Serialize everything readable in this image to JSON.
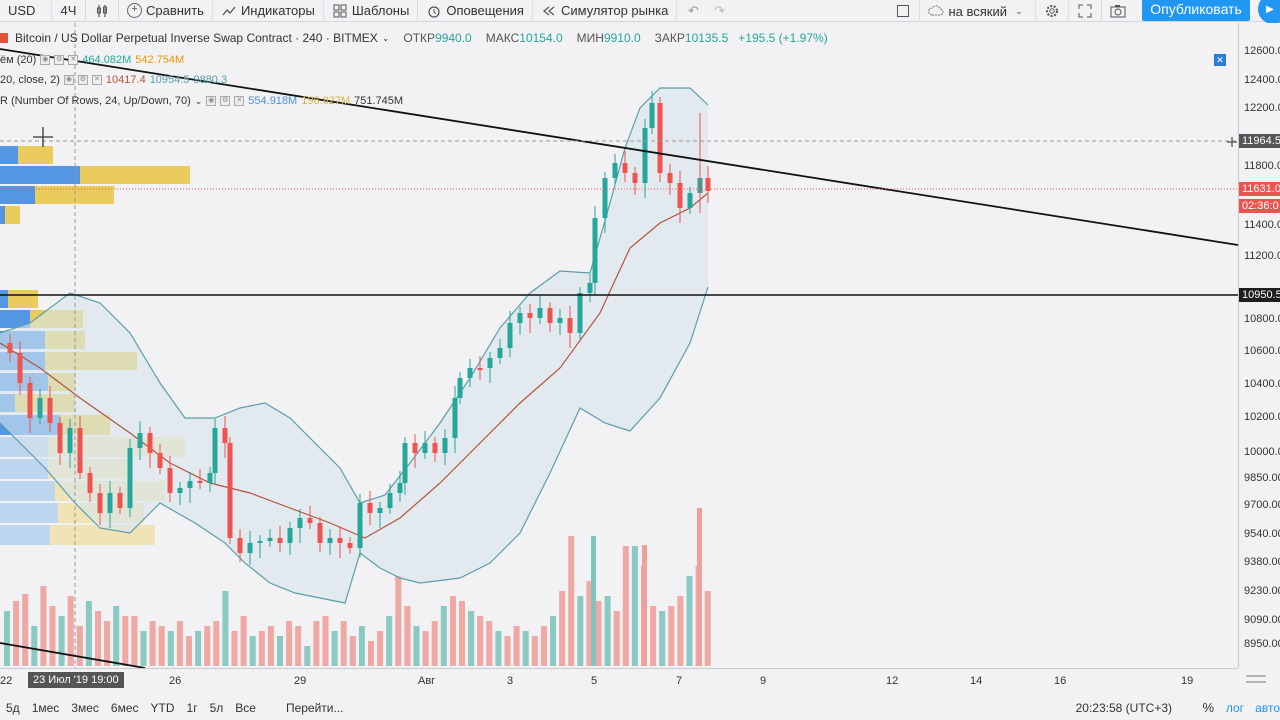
{
  "toolbar": {
    "symbol_suffix": "USD",
    "interval": "4Ч",
    "compare_label": "Сравнить",
    "indicators_label": "Индикаторы",
    "templates_label": "Шаблоны",
    "alerts_label": "Оповещения",
    "replay_label": "Симулятор рынка",
    "layout_name": "на всякий",
    "publish_label": "Опубликовать"
  },
  "legend": {
    "title": "Bitcoin / US Dollar Perpetual Inverse Swap Contract · 240 · BITMEX",
    "open_label": "ОТКР",
    "open_value": "9940.0",
    "high_label": "МАКС",
    "high_value": "10154.0",
    "low_label": "МИН",
    "low_value": "9910.0",
    "close_label": "ЗАКР",
    "close_value": "10135.5",
    "change": "+195.5 (+1.97%)",
    "volume": {
      "name": "ём (20)",
      "value1": "464.082M",
      "value2": "542.754M"
    },
    "bb": {
      "name": "20, close, 2)",
      "value1": "10417.4",
      "value2": "10954.5",
      "value3": "9880.3"
    },
    "vpvr": {
      "name": "R (Number Of Rows, 24, Up/Down, 70)",
      "value1": "554.918M",
      "value2": "196.827M",
      "value3": "751.745M"
    }
  },
  "price_scale": {
    "labels": [
      "12600.00",
      "12400.00",
      "12200.00",
      "11800.00",
      "11400.00",
      "11200.00",
      "10800.00",
      "10600.00",
      "10400.00",
      "10200.00",
      "10000.00",
      "9850.00",
      "9700.00",
      "9540.00",
      "9380.00",
      "9230.00",
      "9090.00",
      "8950.00"
    ],
    "tag_current": "11631.0",
    "tag_countdown": "02:36:0",
    "tag_crosshair": "11964.5",
    "tag_hline": "10950.5"
  },
  "time_scale": {
    "labels": [
      "22",
      "26",
      "29",
      "Авг",
      "3",
      "5",
      "7",
      "9",
      "12",
      "14",
      "16",
      "19"
    ],
    "crosshair_label": "23 Июл '19   19:00"
  },
  "bottom_bar": {
    "ranges": [
      "5д",
      "1мес",
      "3мес",
      "6мес",
      "YTD",
      "1г",
      "5л",
      "Все"
    ],
    "goto_label": "Перейти...",
    "clock": "20:23:58 (UTC+3)",
    "percent": "%",
    "log": "лог",
    "auto": "авто"
  },
  "colors": {
    "up": "#26a69a",
    "down": "#ef5350",
    "bb_line": "#5a9fa8",
    "basis": "#b5533c",
    "vp_up": "#4a90e2",
    "vp_down": "#e8c84a"
  },
  "chart_data": {
    "type": "candlestick",
    "interval": "240",
    "x": [
      "22",
      "26",
      "29",
      "Авг",
      "3",
      "5",
      "7"
    ],
    "horizontal_level": 10950.5,
    "current_price": 11631.0
  }
}
